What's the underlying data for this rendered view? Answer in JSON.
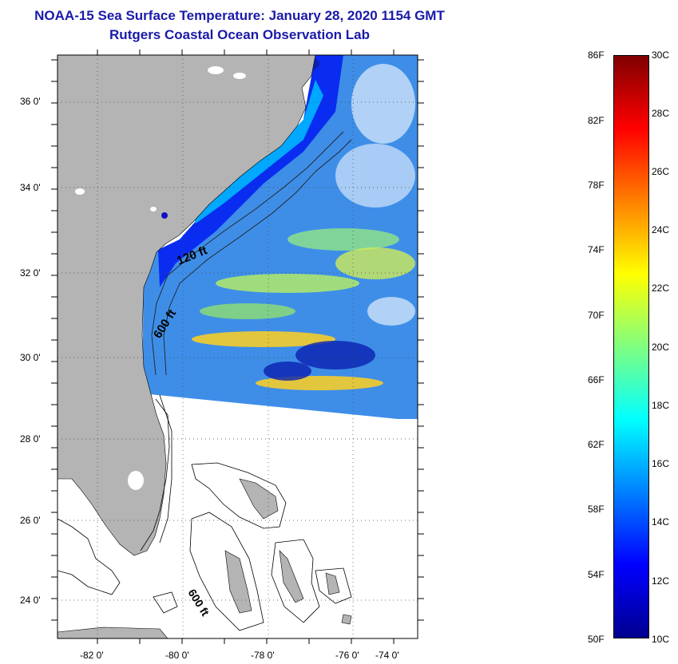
{
  "title": {
    "line1": "NOAA-15 Sea Surface Temperature:  January 28, 2020 1154 GMT",
    "line2": "Rutgers Coastal Ocean Observation Lab"
  },
  "map": {
    "lat_labels": [
      "36 0'",
      "34 0'",
      "32 0'",
      "30 0'",
      "28 0'",
      "26 0'",
      "24 0'"
    ],
    "lon_labels": [
      "-82 0'",
      "-80 0'",
      "-78 0'",
      "-76 0'",
      "-74 0'"
    ],
    "contour_labels": [
      "120 ft",
      "600 ft",
      "600 ft"
    ],
    "land_color": "#b4b4b4",
    "grid_style": "dotted"
  },
  "colorbar": {
    "fahrenheit_labels": [
      "86F",
      "82F",
      "78F",
      "74F",
      "70F",
      "66F",
      "62F",
      "58F",
      "54F",
      "50F"
    ],
    "celsius_labels": [
      "30C",
      "28C",
      "26C",
      "24C",
      "22C",
      "20C",
      "18C",
      "16C",
      "14C",
      "12C",
      "10C"
    ],
    "colors": [
      "#00008f",
      "#0000ff",
      "#0080ff",
      "#00ffff",
      "#80ff80",
      "#ffff00",
      "#ff8000",
      "#ff0000",
      "#800000"
    ]
  }
}
